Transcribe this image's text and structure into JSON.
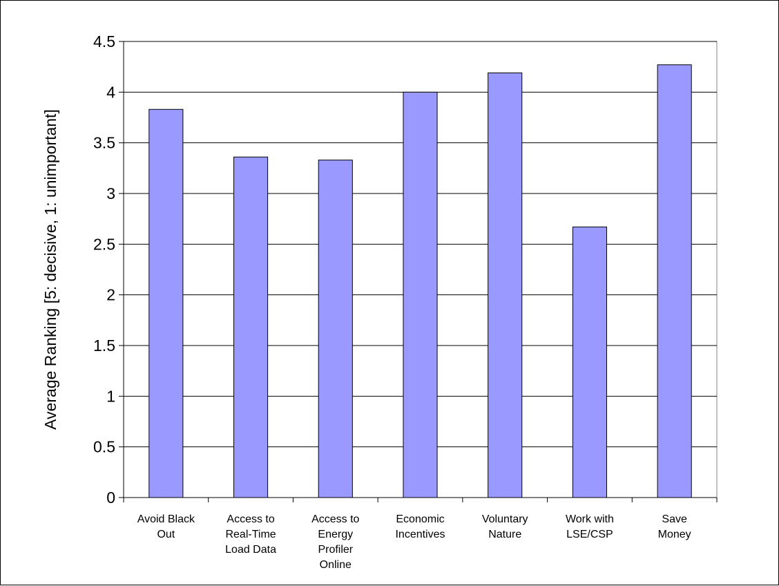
{
  "chart_data": {
    "type": "bar",
    "title": "",
    "xlabel": "",
    "ylabel": "Average Ranking [5: decisive, 1: unimportant]",
    "ylim": [
      0,
      4.5
    ],
    "ytick_step": 0.5,
    "ytick_labels": [
      "0",
      "0.5",
      "1",
      "1.5",
      "2",
      "2.5",
      "3",
      "3.5",
      "4",
      "4.5"
    ],
    "grid": true,
    "legend": "none",
    "categories": [
      [
        "Avoid Black",
        "Out"
      ],
      [
        "Access to",
        "Real-Time",
        "Load Data"
      ],
      [
        "Access to",
        "Energy",
        "Profiler",
        "Online"
      ],
      [
        "Economic",
        "Incentives"
      ],
      [
        "Voluntary",
        "Nature"
      ],
      [
        "Work with",
        "LSE/CSP"
      ],
      [
        "Save",
        "Money"
      ]
    ],
    "values": [
      3.83,
      3.36,
      3.33,
      4.0,
      4.19,
      2.67,
      4.27
    ],
    "colors": {
      "bar": "#9999ff",
      "bar_edge": "#000000",
      "grid": "#000000",
      "plot_bg": "#ffffff"
    }
  }
}
